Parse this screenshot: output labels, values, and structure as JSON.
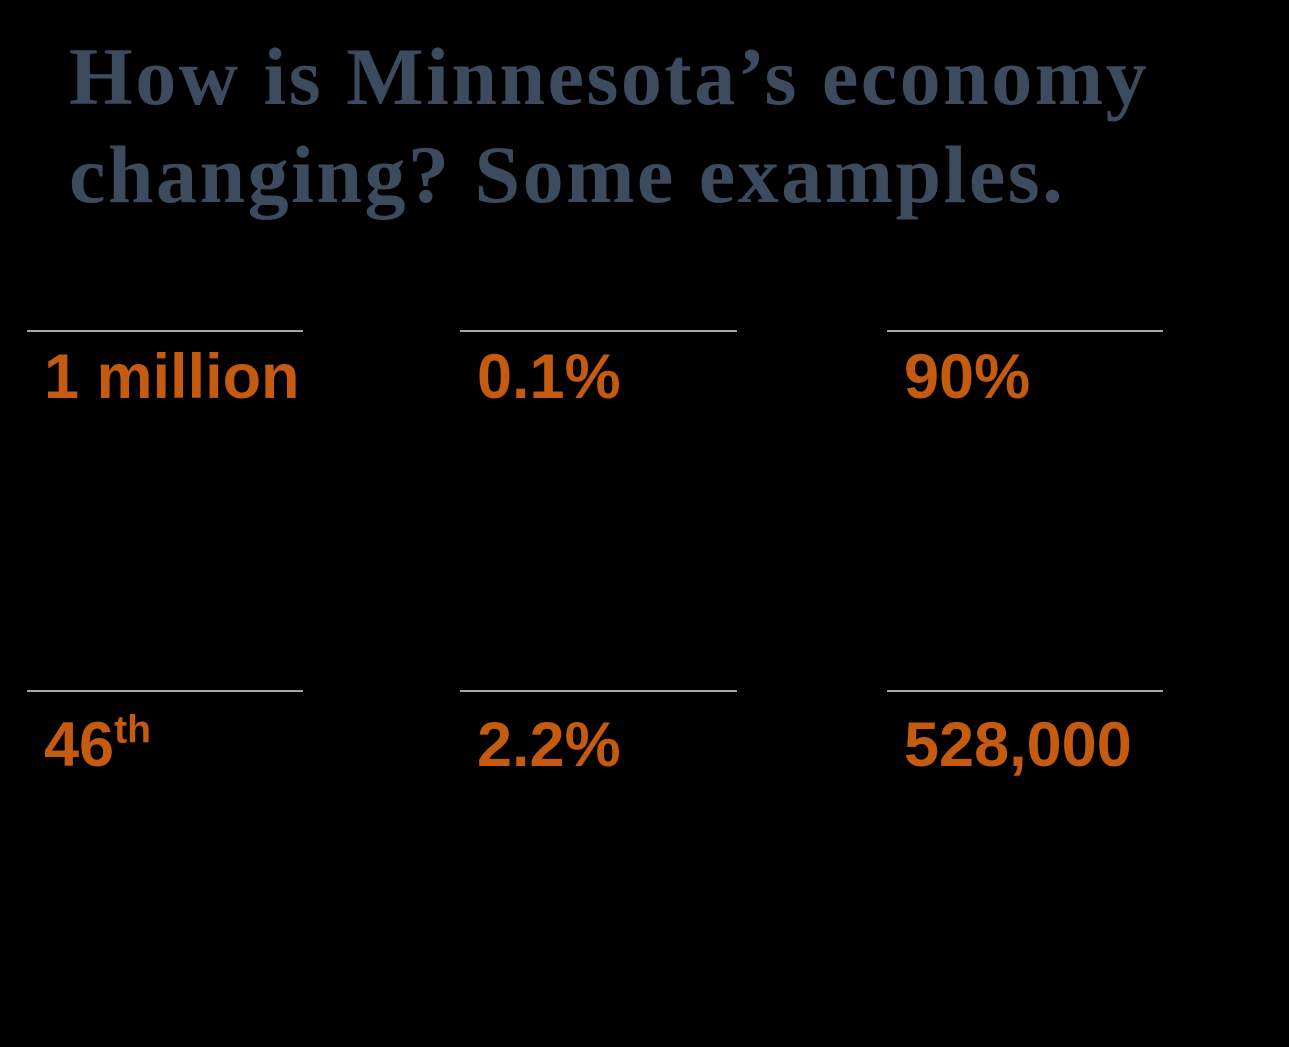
{
  "title": {
    "line1": "How is Minnesota’s economy",
    "line2": "changing? Some examples."
  },
  "stats": [
    {
      "value": "1 million",
      "suffix": ""
    },
    {
      "value": "0.1%",
      "suffix": ""
    },
    {
      "value": "90%",
      "suffix": ""
    },
    {
      "value": "46",
      "suffix": "th"
    },
    {
      "value": "2.2%",
      "suffix": ""
    },
    {
      "value": "528,000",
      "suffix": ""
    }
  ],
  "colors": {
    "bg": "#000000",
    "title": "#3D4B5F",
    "stat": "#C55A11",
    "divider": "#A6A6A6"
  }
}
